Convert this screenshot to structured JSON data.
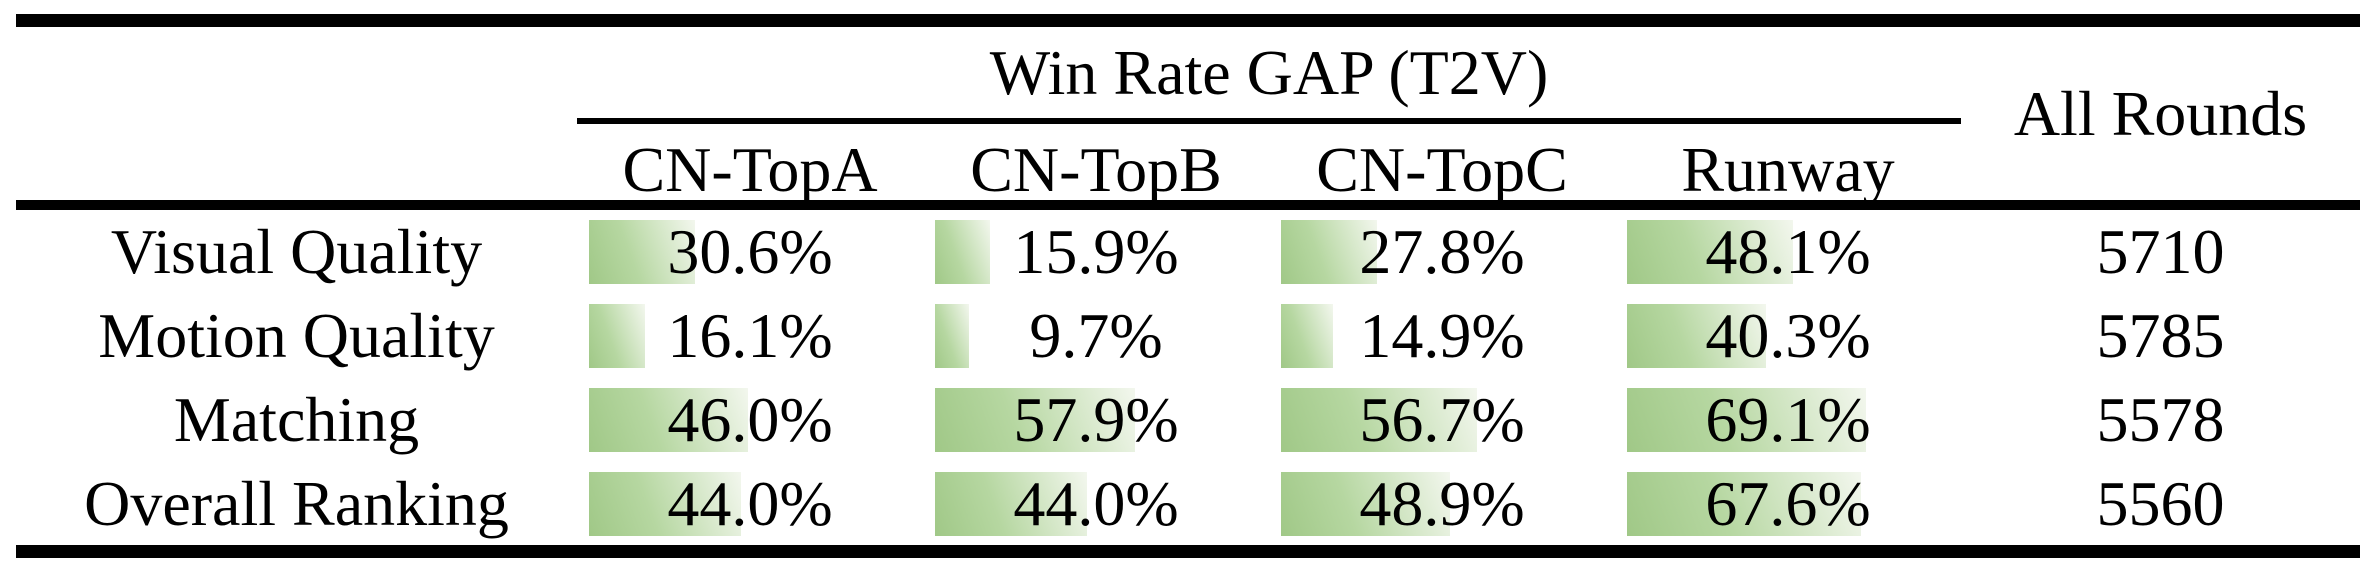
{
  "figure": {
    "group_header": "Win Rate GAP (T2V)",
    "rounds_header": "All Rounds",
    "columns": [
      "CN-TopA",
      "CN-TopB",
      "CN-TopC",
      "Runway"
    ],
    "rows": [
      {
        "label": "Visual Quality",
        "cells": [
          {
            "pct": 30.6,
            "text": "30.6%"
          },
          {
            "pct": 15.9,
            "text": "15.9%"
          },
          {
            "pct": 27.8,
            "text": "27.8%"
          },
          {
            "pct": 48.1,
            "text": "48.1%"
          }
        ],
        "rounds": "5710"
      },
      {
        "label": "Motion Quality",
        "cells": [
          {
            "pct": 16.1,
            "text": "16.1%"
          },
          {
            "pct": 9.7,
            "text": "9.7%"
          },
          {
            "pct": 14.9,
            "text": "14.9%"
          },
          {
            "pct": 40.3,
            "text": "40.3%"
          }
        ],
        "rounds": "5785"
      },
      {
        "label": "Matching",
        "cells": [
          {
            "pct": 46.0,
            "text": "46.0%"
          },
          {
            "pct": 57.9,
            "text": "57.9%"
          },
          {
            "pct": 56.7,
            "text": "56.7%"
          },
          {
            "pct": 69.1,
            "text": "69.1%"
          }
        ],
        "rounds": "5578"
      },
      {
        "label": "Overall Ranking",
        "cells": [
          {
            "pct": 44.0,
            "text": "44.0%"
          },
          {
            "pct": 44.0,
            "text": "44.0%"
          },
          {
            "pct": 48.9,
            "text": "48.9%"
          },
          {
            "pct": 67.6,
            "text": "67.6%"
          }
        ],
        "rounds": "5560"
      }
    ],
    "colors": {
      "rule": "#000000",
      "bar_gradient_start": "#a0c887",
      "bar_gradient_mid": "#b6d7a1",
      "bar_gradient_end": "#f3f7ee"
    }
  },
  "chart_data": {
    "type": "table",
    "title": "Win Rate GAP (T2V)",
    "categories": [
      "Visual Quality",
      "Motion Quality",
      "Matching",
      "Overall Ranking"
    ],
    "series": [
      {
        "name": "CN-TopA",
        "values": [
          30.6,
          16.1,
          46.0,
          44.0
        ],
        "unit": "%"
      },
      {
        "name": "CN-TopB",
        "values": [
          15.9,
          9.7,
          57.9,
          44.0
        ],
        "unit": "%"
      },
      {
        "name": "CN-TopC",
        "values": [
          27.8,
          14.9,
          56.7,
          48.9
        ],
        "unit": "%"
      },
      {
        "name": "Runway",
        "values": [
          48.1,
          40.3,
          69.1,
          67.6
        ],
        "unit": "%"
      },
      {
        "name": "All Rounds",
        "values": [
          5710,
          5785,
          5578,
          5560
        ],
        "unit": "count"
      }
    ],
    "bar_scale": [
      0,
      100
    ],
    "notes": "in-cell horizontal bars, width proportional to percentage"
  }
}
